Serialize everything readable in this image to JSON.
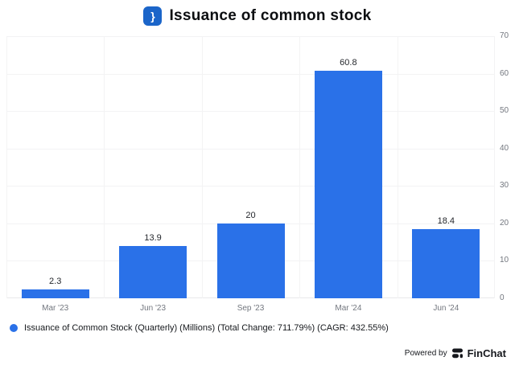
{
  "header": {
    "title": "Issuance of common stock",
    "icon_glyph": "}"
  },
  "chart_data": {
    "type": "bar",
    "title": "Issuance of common stock",
    "categories": [
      "Mar '23",
      "Jun '23",
      "Sep '23",
      "Mar '24",
      "Jun '24"
    ],
    "values": [
      2.3,
      13.9,
      20,
      60.8,
      18.4
    ],
    "value_labels": [
      "2.3",
      "13.9",
      "20",
      "60.8",
      "18.4"
    ],
    "series_name": "Issuance of Common Stock (Quarterly) (Millions)",
    "xlabel": "",
    "ylabel": "",
    "ylim": [
      0,
      70
    ],
    "y_ticks": [
      0,
      10,
      20,
      30,
      40,
      50,
      60,
      70
    ],
    "y_axis_side": "right",
    "grid": true,
    "legend_position": "bottom-left",
    "bar_color": "#2a71e8"
  },
  "legend": {
    "label": "Issuance of Common Stock (Quarterly) (Millions) (Total Change: 711.79%) (CAGR: 432.55%)",
    "marker_color": "#2a71e8"
  },
  "footer": {
    "powered_by": "Powered by",
    "brand": "FinChat"
  },
  "colors": {
    "bar": "#2a71e8",
    "icon_bg": "#1b65c9",
    "grid": "#f3f3f4",
    "tick_label": "#73777f",
    "value_label": "#24272c",
    "title": "#0c0e11",
    "brand_dark": "#16181d"
  }
}
